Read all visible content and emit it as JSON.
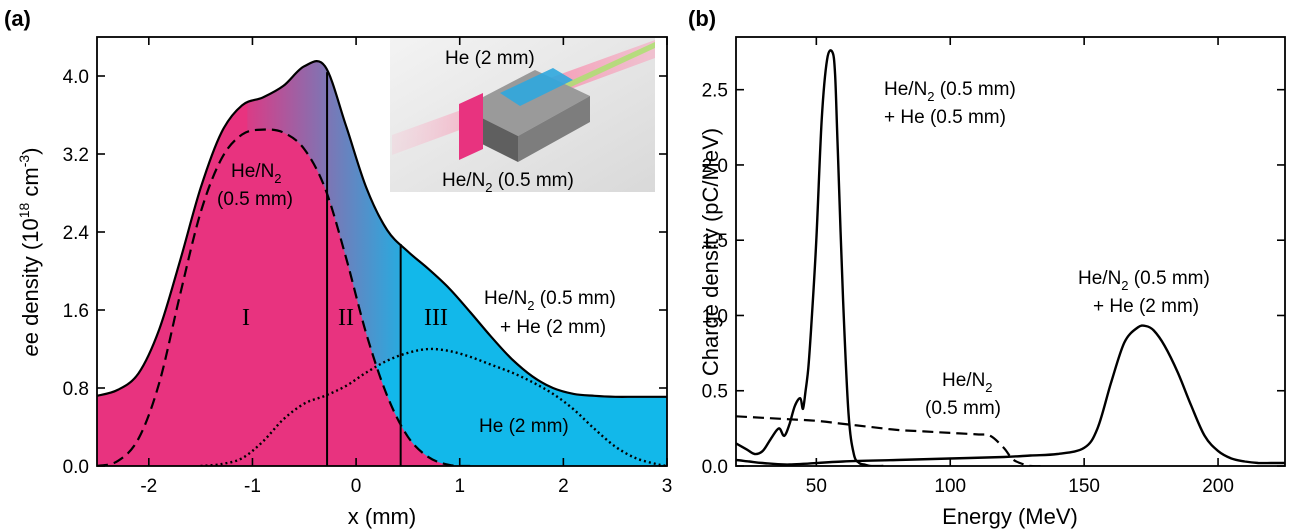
{
  "panel_a": {
    "label": "(a)",
    "inset": {
      "top_label": "He (2 mm)",
      "bottom_label": "He/N",
      "bottom_sub": "2",
      "bottom_rest": " (0.5 mm)"
    },
    "annotations": {
      "hen2_line1": "He/N",
      "hen2_sub": "2",
      "hen2_line2": "(0.5 mm)",
      "combo_line1": "He/N",
      "combo_sub": "2",
      "combo_rest": " (0.5 mm)",
      "combo_line2": "+ He (2 mm)",
      "he_label": "He (2 mm)"
    },
    "regions": [
      "I",
      "II",
      "III"
    ]
  },
  "panel_b": {
    "label": "(b)",
    "annotations": {
      "small_line1": "He/N",
      "small_sub": "2",
      "small_rest": " (0.5 mm)",
      "small_line2": "+ He (0.5 mm)",
      "mid_line1": "He/N",
      "mid_sub": "2",
      "mid_line2": "(0.5 mm)",
      "big_line1": "He/N",
      "big_sub": "2",
      "big_rest": " (0.5 mm)",
      "big_line2": "+ He (2 mm)"
    }
  },
  "chart_data": [
    {
      "type": "area",
      "xlabel": "x (mm)",
      "ylabel_pre": "e density (10",
      "ylabel_sup": "18",
      "ylabel_mid": " cm",
      "ylabel_sup2": "-3",
      "ylabel_post": ")",
      "xlim": [
        -2.5,
        3
      ],
      "ylim": [
        0,
        4.4
      ],
      "xticks": [
        -2,
        -1,
        0,
        1,
        2,
        3
      ],
      "xtick_labels": [
        "-2",
        "-1",
        "0",
        "1",
        "2",
        "3"
      ],
      "yticks": [
        0.0,
        0.8,
        1.6,
        2.4,
        3.2,
        4.0
      ],
      "ytick_labels": [
        "0.0",
        "0.8",
        "1.6",
        "2.4",
        "3.2",
        "4.0"
      ],
      "region_boundaries": [
        -0.28,
        0.43
      ],
      "colors": {
        "hen2": "#e8337f",
        "he": "#12b8ea"
      },
      "series": [
        {
          "name": "He/N2 (0.5 mm) + He (2 mm)",
          "style": "solid",
          "x": [
            -2.5,
            -2.3,
            -2.1,
            -1.9,
            -1.7,
            -1.5,
            -1.3,
            -1.1,
            -0.9,
            -0.7,
            -0.5,
            -0.3,
            -0.1,
            0.1,
            0.3,
            0.5,
            0.7,
            0.9,
            1.1,
            1.3,
            1.5,
            1.7,
            1.9,
            2.1,
            2.3,
            2.5,
            2.7,
            3.0
          ],
          "y": [
            0.72,
            0.78,
            0.95,
            1.4,
            2.1,
            2.85,
            3.42,
            3.7,
            3.78,
            3.9,
            4.1,
            4.1,
            3.5,
            2.85,
            2.42,
            2.2,
            2.02,
            1.82,
            1.58,
            1.33,
            1.1,
            0.92,
            0.8,
            0.74,
            0.72,
            0.71,
            0.71,
            0.71
          ]
        },
        {
          "name": "He/N2 (0.5 mm)",
          "style": "dashed",
          "x": [
            -2.5,
            -2.3,
            -2.1,
            -1.9,
            -1.7,
            -1.5,
            -1.3,
            -1.1,
            -0.9,
            -0.7,
            -0.5,
            -0.3,
            -0.1,
            0.1,
            0.3,
            0.5,
            0.7,
            0.9,
            1.1
          ],
          "y": [
            0.0,
            0.05,
            0.28,
            0.85,
            1.75,
            2.6,
            3.15,
            3.4,
            3.45,
            3.42,
            3.25,
            2.85,
            2.15,
            1.35,
            0.72,
            0.3,
            0.09,
            0.01,
            0.0
          ]
        },
        {
          "name": "He (2 mm)",
          "style": "dotted",
          "x": [
            -1.5,
            -1.3,
            -1.1,
            -0.9,
            -0.7,
            -0.5,
            -0.3,
            -0.1,
            0.1,
            0.3,
            0.5,
            0.7,
            0.9,
            1.1,
            1.3,
            1.5,
            1.7,
            1.9,
            2.1,
            2.3,
            2.5,
            2.7,
            2.9,
            3.0
          ],
          "y": [
            0.0,
            0.02,
            0.08,
            0.25,
            0.48,
            0.64,
            0.72,
            0.82,
            0.96,
            1.08,
            1.16,
            1.2,
            1.18,
            1.12,
            1.04,
            0.96,
            0.86,
            0.74,
            0.58,
            0.38,
            0.2,
            0.08,
            0.02,
            0.0
          ]
        }
      ]
    },
    {
      "type": "line",
      "xlabel": "Energy (MeV)",
      "ylabel": "Charge density (pC/MeV)",
      "xlim": [
        20,
        225
      ],
      "ylim": [
        0,
        2.85
      ],
      "xticks": [
        50,
        100,
        150,
        200
      ],
      "xtick_labels": [
        "50",
        "100",
        "150",
        "200"
      ],
      "yticks": [
        0.0,
        0.5,
        1.0,
        1.5,
        2.0,
        2.5
      ],
      "ytick_labels": [
        "0.0",
        "0.5",
        "1.0",
        "1.5",
        "2.0",
        "2.5"
      ],
      "series": [
        {
          "name": "He/N2 (0.5 mm) + He (0.5 mm)",
          "style": "solid",
          "x": [
            20,
            24,
            27,
            30,
            33,
            36,
            38,
            40,
            42,
            44,
            45,
            46,
            47,
            48,
            50,
            52,
            54,
            56,
            57,
            58,
            60,
            62,
            64,
            66,
            68,
            70,
            75
          ],
          "y": [
            0.15,
            0.11,
            0.08,
            0.1,
            0.18,
            0.25,
            0.2,
            0.28,
            0.4,
            0.45,
            0.38,
            0.5,
            0.65,
            0.9,
            1.5,
            2.3,
            2.7,
            2.75,
            2.6,
            2.1,
            1.1,
            0.35,
            0.08,
            0.02,
            0.01,
            0.0,
            0.0
          ]
        },
        {
          "name": "He/N2 (0.5 mm)",
          "style": "dashed",
          "x": [
            20,
            30,
            40,
            50,
            60,
            70,
            80,
            90,
            100,
            110,
            115,
            120,
            123,
            126,
            130,
            135
          ],
          "y": [
            0.33,
            0.32,
            0.31,
            0.3,
            0.28,
            0.26,
            0.24,
            0.23,
            0.22,
            0.21,
            0.2,
            0.12,
            0.05,
            0.02,
            0.0,
            0.0
          ]
        },
        {
          "name": "He/N2 (0.5 mm) + He (2 mm)",
          "style": "solid",
          "x": [
            20,
            25,
            30,
            40,
            60,
            80,
            100,
            120,
            130,
            140,
            150,
            155,
            160,
            165,
            170,
            173,
            176,
            180,
            185,
            190,
            195,
            200,
            205,
            210,
            215,
            220,
            225
          ],
          "y": [
            0.04,
            0.03,
            0.02,
            0.01,
            0.03,
            0.04,
            0.05,
            0.06,
            0.07,
            0.08,
            0.12,
            0.25,
            0.55,
            0.82,
            0.92,
            0.93,
            0.9,
            0.8,
            0.62,
            0.4,
            0.2,
            0.1,
            0.05,
            0.03,
            0.02,
            0.02,
            0.02
          ]
        }
      ]
    }
  ]
}
